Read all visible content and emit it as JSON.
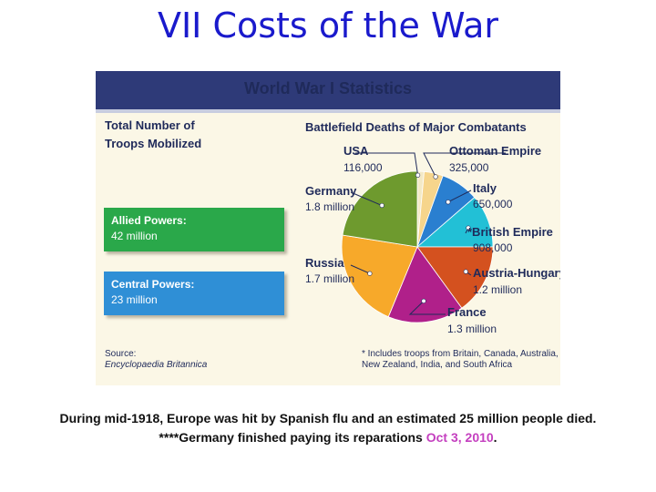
{
  "slide": {
    "title": "VII Costs of the War",
    "caption_line1": "During mid-1918, Europe was hit by Spanish flu and an estimated 25 million people died.",
    "caption_line2_prefix": "****Germany finished paying its reparations ",
    "caption_line2_date": "Oct 3, 2010",
    "caption_line2_suffix": "."
  },
  "panel": {
    "title": "World War I Statistics",
    "troops_heading_line1": "Total Number of",
    "troops_heading_line2": "Troops Mobilized",
    "allied_label": "Allied Powers:",
    "allied_value": "42 million",
    "central_label": "Central Powers:",
    "central_value": "23 million",
    "source_label": "Source:",
    "source_name": "Encyclopaedia Britannica",
    "footnote_line1": "* Includes troops from Britain, Canada, Australia,",
    "footnote_line2": "New Zealand, India, and South Africa"
  },
  "colors": {
    "allied_box": "#2aa84a",
    "central_box": "#2f8fd6",
    "header_band": "#2e3a78",
    "title_blue": "#1a1acc",
    "date_magenta": "#c43fbf"
  },
  "chart_data": {
    "type": "pie",
    "title": "Battlefield Deaths of Major Combatants",
    "slices": [
      {
        "name": "USA",
        "label": "USA",
        "value_label": "116,000",
        "value": 116000,
        "color": "#f3e9c6"
      },
      {
        "name": "Ottoman Empire",
        "label": "Ottoman Empire",
        "value_label": "325,000",
        "value": 325000,
        "color": "#f6d58c"
      },
      {
        "name": "Italy",
        "label": "Italy",
        "value_label": "650,000",
        "value": 650000,
        "color": "#2a7fd0"
      },
      {
        "name": "British Empire",
        "label": "*British Empire",
        "value_label": "908,000",
        "value": 908000,
        "color": "#22c0d6"
      },
      {
        "name": "Austria-Hungary",
        "label": "Austria-Hungary",
        "value_label": "1.2 million",
        "value": 1200000,
        "color": "#d4511f"
      },
      {
        "name": "France",
        "label": "France",
        "value_label": "1.3 million",
        "value": 1300000,
        "color": "#b0208a"
      },
      {
        "name": "Russia",
        "label": "Russia",
        "value_label": "1.7 million",
        "value": 1700000,
        "color": "#f7a92a"
      },
      {
        "name": "Germany",
        "label": "Germany",
        "value_label": "1.8 million",
        "value": 1800000,
        "color": "#6e9a2e"
      }
    ]
  }
}
